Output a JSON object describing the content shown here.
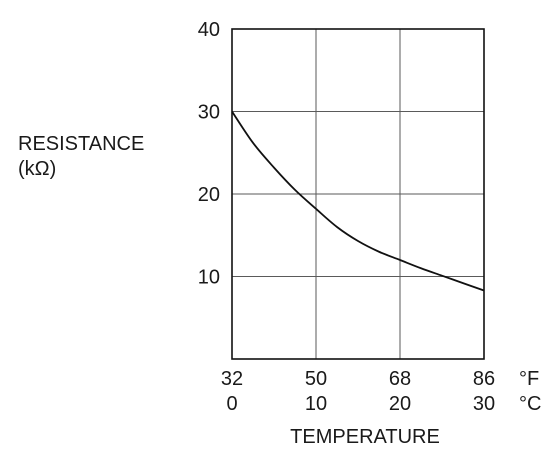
{
  "chart_data": {
    "type": "line",
    "ylabel_lines": [
      "RESISTANCE",
      "(kΩ)"
    ],
    "xlabel": "TEMPERATURE",
    "x_ticks_primary": [
      "32",
      "50",
      "68",
      "86"
    ],
    "x_unit_primary": "°F",
    "x_ticks_secondary": [
      "0",
      "10",
      "20",
      "30"
    ],
    "x_unit_secondary": "°C",
    "y_ticks": [
      "10",
      "20",
      "30",
      "40"
    ],
    "xlim": [
      0,
      30
    ],
    "ylim": [
      0,
      40
    ],
    "grid": true,
    "series": [
      {
        "x": [
          0,
          2.5,
          5,
          7.5,
          10,
          12.5,
          15,
          17.5,
          20,
          22.5,
          25,
          27.5,
          30
        ],
        "y": [
          30.0,
          26.2,
          23.2,
          20.5,
          18.2,
          16.0,
          14.3,
          13.0,
          12.0,
          11.0,
          10.1,
          9.2,
          8.3
        ]
      }
    ]
  }
}
